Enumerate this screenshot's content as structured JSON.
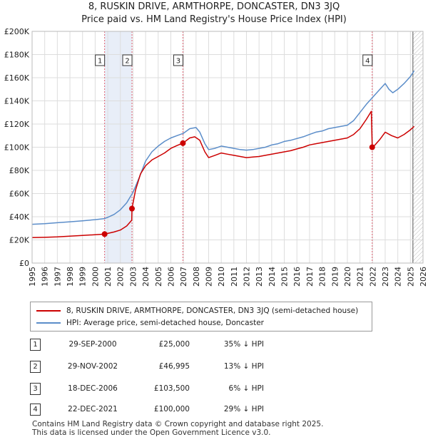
{
  "title_line1": "8, RUSKIN DRIVE, ARMTHORPE, DONCASTER, DN3 3JQ",
  "title_line2": "Price paid vs. HM Land Registry's House Price Index (HPI)",
  "legend": {
    "property": "8, RUSKIN DRIVE, ARMTHORPE, DONCASTER, DN3 3JQ (semi-detached house)",
    "hpi": "HPI: Average price, semi-detached house, Doncaster"
  },
  "colors": {
    "property": "#cc0000",
    "hpi": "#5b8dc9",
    "shade": "#e8eef8",
    "grid": "#dddddd"
  },
  "transactions": [
    {
      "n": "1",
      "date": "29-SEP-2000",
      "price": "£25,000",
      "delta": "35% ↓ HPI"
    },
    {
      "n": "2",
      "date": "29-NOV-2002",
      "price": "£46,995",
      "delta": "13% ↓ HPI"
    },
    {
      "n": "3",
      "date": "18-DEC-2006",
      "price": "£103,500",
      "delta": "6% ↓ HPI"
    },
    {
      "n": "4",
      "date": "22-DEC-2021",
      "price": "£100,000",
      "delta": "29% ↓ HPI"
    }
  ],
  "footer_line1": "Contains HM Land Registry data © Crown copyright and database right 2025.",
  "footer_line2": "This data is licensed under the Open Government Licence v3.0.",
  "chart_data": {
    "type": "line",
    "title": "8, RUSKIN DRIVE, ARMTHORPE, DONCASTER, DN3 3JQ — Price paid vs. HM Land Registry's House Price Index (HPI)",
    "xlabel": "",
    "ylabel": "",
    "xlim": [
      1995,
      2026
    ],
    "ylim": [
      0,
      200000
    ],
    "y_ticks": [
      0,
      20000,
      40000,
      60000,
      80000,
      100000,
      120000,
      140000,
      160000,
      180000,
      200000
    ],
    "y_tick_labels": [
      "£0",
      "£20K",
      "£40K",
      "£60K",
      "£80K",
      "£100K",
      "£120K",
      "£140K",
      "£160K",
      "£180K",
      "£200K"
    ],
    "x_ticks": [
      1995,
      1996,
      1997,
      1998,
      1999,
      2000,
      2001,
      2002,
      2003,
      2004,
      2005,
      2006,
      2007,
      2008,
      2009,
      2010,
      2011,
      2012,
      2013,
      2014,
      2015,
      2016,
      2017,
      2018,
      2019,
      2020,
      2021,
      2022,
      2023,
      2024,
      2025,
      2026
    ],
    "shaded_ranges": [
      [
        2000.75,
        2002.92
      ],
      [
        2025.2,
        2026.0
      ]
    ],
    "sale_markers": [
      {
        "label": "1",
        "x": 2000.75,
        "y": 25000
      },
      {
        "label": "2",
        "x": 2002.92,
        "y": 46995
      },
      {
        "label": "3",
        "x": 2006.96,
        "y": 103500
      },
      {
        "label": "4",
        "x": 2021.97,
        "y": 100000
      }
    ],
    "series": [
      {
        "name": "8, RUSKIN DRIVE, ARMTHORPE, DONCASTER, DN3 3JQ (semi-detached house)",
        "x": [
          1995,
          1996,
          1997,
          1998,
          1999,
          2000,
          2000.75,
          2001,
          2001.5,
          2002,
          2002.5,
          2002.9,
          2002.92,
          2003.2,
          2003.6,
          2004,
          2004.5,
          2005,
          2005.5,
          2006,
          2006.5,
          2006.96,
          2007.5,
          2007.9,
          2008.3,
          2008.7,
          2009,
          2009.5,
          2010,
          2010.5,
          2011,
          2011.5,
          2012,
          2012.5,
          2013,
          2013.5,
          2014,
          2014.5,
          2015,
          2015.5,
          2016,
          2016.5,
          2017,
          2017.5,
          2018,
          2018.5,
          2019,
          2019.5,
          2020,
          2020.5,
          2021,
          2021.5,
          2021.9,
          2021.97,
          2022.2,
          2022.6,
          2023,
          2023.5,
          2024,
          2024.5,
          2025,
          2025.3
        ],
        "y": [
          22000,
          22200,
          22600,
          23200,
          23800,
          24500,
          25000,
          25600,
          26800,
          28500,
          32000,
          37000,
          46995,
          63000,
          77000,
          84000,
          89000,
          92000,
          95000,
          99000,
          101500,
          103500,
          108000,
          109000,
          106000,
          96000,
          91000,
          93000,
          95000,
          94000,
          93000,
          92000,
          91000,
          91500,
          92000,
          93000,
          94000,
          95000,
          96000,
          97000,
          98500,
          100000,
          102000,
          103000,
          104000,
          105000,
          106000,
          107000,
          108000,
          111000,
          116000,
          124000,
          131000,
          100000,
          102000,
          107000,
          113000,
          110000,
          108000,
          111000,
          115000,
          118000
        ]
      },
      {
        "name": "HPI: Average price, semi-detached house, Doncaster",
        "x": [
          1995,
          1996,
          1997,
          1998,
          1999,
          2000,
          2000.75,
          2001,
          2001.5,
          2002,
          2002.5,
          2003,
          2003.5,
          2004,
          2004.5,
          2005,
          2005.5,
          2006,
          2006.5,
          2007,
          2007.5,
          2008,
          2008.3,
          2008.7,
          2009,
          2009.5,
          2010,
          2010.5,
          2011,
          2011.5,
          2012,
          2012.5,
          2013,
          2013.5,
          2014,
          2014.5,
          2015,
          2015.5,
          2016,
          2016.5,
          2017,
          2017.5,
          2018,
          2018.5,
          2019,
          2019.5,
          2020,
          2020.5,
          2021,
          2021.5,
          2022,
          2022.5,
          2023,
          2023.3,
          2023.6,
          2024,
          2024.5,
          2025,
          2025.3
        ],
        "y": [
          33500,
          34000,
          34800,
          35600,
          36500,
          37500,
          38400,
          39500,
          42000,
          46000,
          52000,
          61000,
          74000,
          88000,
          96000,
          101000,
          105000,
          108000,
          110000,
          112000,
          116000,
          117000,
          113000,
          103000,
          98000,
          99000,
          101000,
          100000,
          99000,
          98000,
          97500,
          98000,
          99000,
          100000,
          102000,
          103000,
          105000,
          106000,
          107500,
          109000,
          111000,
          113000,
          114000,
          116000,
          117000,
          118000,
          119000,
          123000,
          130000,
          137000,
          143000,
          149000,
          155000,
          150000,
          147000,
          150000,
          155000,
          161000,
          166000
        ]
      }
    ]
  }
}
